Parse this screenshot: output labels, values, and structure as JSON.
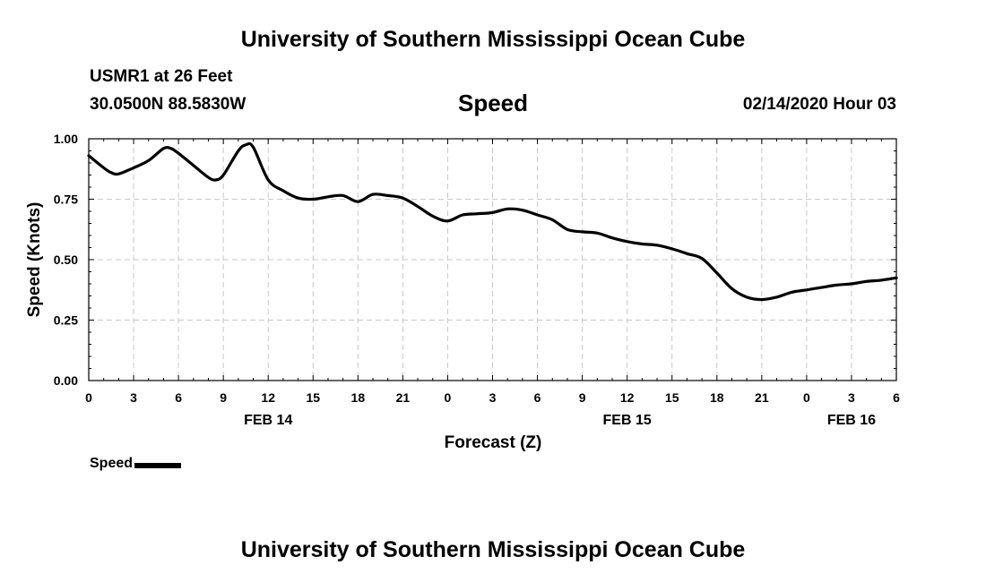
{
  "header": {
    "title": "University of Southern Mississippi Ocean Cube",
    "station": "USMR1 at 26 Feet",
    "coordinates": "30.0500N 88.5830W",
    "chart_title": "Speed",
    "date": "02/14/2020 Hour 03"
  },
  "footer": {
    "title": "University of Southern Mississippi Ocean Cube"
  },
  "legend": {
    "label": "Speed",
    "color": "#000000"
  },
  "chart_data": {
    "type": "line",
    "title": "Speed",
    "xlabel": "Forecast (Z)",
    "ylabel": "Speed (Knots)",
    "ylim": [
      0,
      1
    ],
    "xlim": [
      0,
      54
    ],
    "grid": true,
    "y_ticks": [
      0,
      0.25,
      0.5,
      0.75,
      1.0
    ],
    "y_tick_labels": [
      "0.00",
      "0.25",
      "0.50",
      "0.75",
      "1.00"
    ],
    "x_ticks": [
      0,
      3,
      6,
      9,
      12,
      15,
      18,
      21,
      24,
      27,
      30,
      33,
      36,
      39,
      42,
      45,
      48,
      51,
      54
    ],
    "x_tick_labels": [
      "0",
      "3",
      "6",
      "9",
      "12",
      "15",
      "18",
      "21",
      "0",
      "3",
      "6",
      "9",
      "12",
      "15",
      "18",
      "21",
      "0",
      "3",
      "6"
    ],
    "date_labels": [
      {
        "at": 12,
        "label": "FEB 14"
      },
      {
        "at": 36,
        "label": "FEB 15"
      },
      {
        "at": 51,
        "label": "FEB 16"
      }
    ],
    "series": [
      {
        "name": "Speed",
        "color": "#000000",
        "x": [
          0,
          1,
          1.5,
          2,
          3,
          4,
          5,
          5.5,
          6,
          7,
          8,
          8.5,
          9,
          10,
          10.5,
          11,
          12,
          13,
          14,
          15,
          16,
          17,
          18,
          19,
          20,
          21,
          22,
          23,
          24,
          25,
          26,
          27,
          28,
          29,
          30,
          31,
          32,
          33,
          34,
          35,
          36,
          37,
          38,
          39,
          40,
          41,
          42,
          43,
          44,
          45,
          46,
          47,
          48,
          49,
          50,
          51,
          52,
          53,
          54
        ],
        "values": [
          0.93,
          0.88,
          0.86,
          0.855,
          0.88,
          0.91,
          0.96,
          0.96,
          0.94,
          0.89,
          0.84,
          0.83,
          0.85,
          0.95,
          0.975,
          0.965,
          0.83,
          0.785,
          0.755,
          0.75,
          0.76,
          0.765,
          0.74,
          0.77,
          0.765,
          0.755,
          0.72,
          0.68,
          0.66,
          0.685,
          0.69,
          0.695,
          0.71,
          0.705,
          0.685,
          0.665,
          0.625,
          0.615,
          0.61,
          0.59,
          0.575,
          0.565,
          0.56,
          0.545,
          0.525,
          0.505,
          0.445,
          0.38,
          0.345,
          0.335,
          0.345,
          0.365,
          0.375,
          0.385,
          0.395,
          0.4,
          0.41,
          0.415,
          0.425
        ]
      }
    ]
  }
}
